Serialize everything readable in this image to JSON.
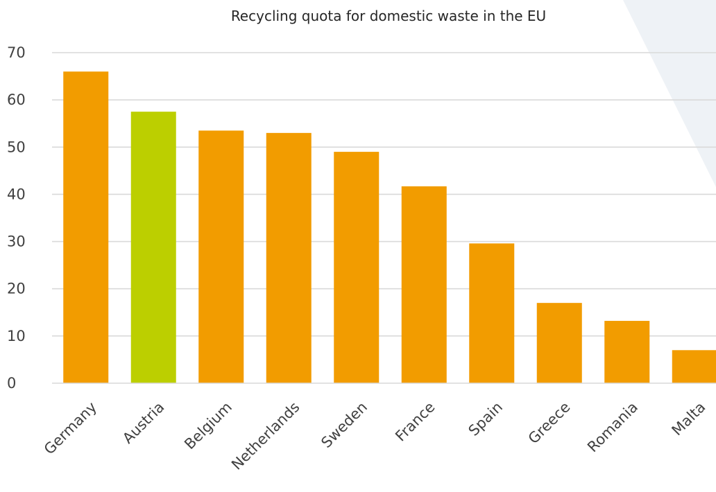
{
  "chart_data": {
    "type": "bar",
    "title": "Recycling quota for domestic waste in the EU",
    "xlabel": "",
    "ylabel": "",
    "categories": [
      "Germany",
      "Austria",
      "Belgium",
      "Netherlands",
      "Sweden",
      "France",
      "Spain",
      "Greece",
      "Romania",
      "Malta"
    ],
    "values": [
      66,
      57.5,
      53.5,
      53,
      49,
      41.7,
      29.6,
      17,
      13.2,
      7
    ],
    "ylim": [
      0,
      70
    ],
    "yticks": [
      "0",
      "10",
      "20",
      "30",
      "40",
      "50",
      "60",
      "70"
    ],
    "grid": true,
    "legend": "none",
    "colors": {
      "default_bar": "#f29c00",
      "highlight_bar": "#bccf00",
      "background_accent": "#eef2f6"
    },
    "highlight": "Austria"
  }
}
